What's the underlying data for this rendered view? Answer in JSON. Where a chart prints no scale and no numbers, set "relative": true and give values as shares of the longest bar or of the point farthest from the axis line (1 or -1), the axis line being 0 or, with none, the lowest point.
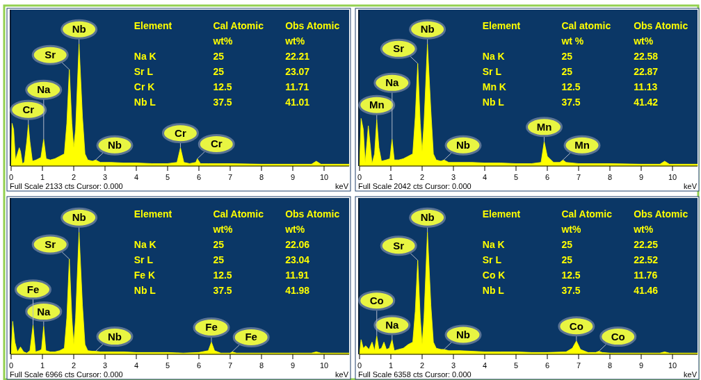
{
  "chart_data": [
    {
      "type": "area",
      "relative": true,
      "xlabel": "keV",
      "xlim": [
        0,
        10.8
      ],
      "xticks": [
        0,
        1,
        2,
        3,
        4,
        5,
        6,
        7,
        8,
        9,
        10
      ],
      "color": "#ffff00",
      "x": [
        0,
        0.03,
        0.08,
        0.14,
        0.2,
        0.26,
        0.3,
        0.36,
        0.42,
        0.5,
        0.55,
        0.6,
        0.68,
        0.8,
        0.95,
        1.04,
        1.12,
        1.25,
        1.4,
        1.55,
        1.7,
        1.78,
        1.86,
        1.94,
        2.0,
        2.06,
        2.17,
        2.28,
        2.36,
        2.45,
        2.6,
        2.7,
        2.85,
        3.2,
        3.6,
        4.0,
        4.5,
        5.0,
        5.3,
        5.41,
        5.52,
        5.7,
        5.9,
        5.95,
        6.05,
        6.3,
        7,
        8,
        9,
        9.6,
        9.75,
        9.9,
        10.4,
        10.8
      ],
      "values": [
        0,
        0.35,
        0.3,
        0.05,
        0.1,
        0.15,
        0.12,
        0.02,
        0.03,
        0.2,
        0.34,
        0.2,
        0.04,
        0.05,
        0.07,
        0.22,
        0.06,
        0.05,
        0.06,
        0.08,
        0.1,
        0.35,
        0.79,
        0.35,
        0.15,
        0.3,
        1.0,
        0.4,
        0.1,
        0.05,
        0.04,
        0.05,
        0.03,
        0.03,
        0.025,
        0.025,
        0.02,
        0.02,
        0.03,
        0.15,
        0.03,
        0.02,
        0.03,
        0.06,
        0.02,
        0.02,
        0.02,
        0.015,
        0.015,
        0.015,
        0.04,
        0.015,
        0.015,
        0.015
      ],
      "annotations": [
        {
          "text": "Nb",
          "x": 2.17,
          "y": 1.0
        },
        {
          "text": "Sr",
          "x": 1.86,
          "y": 0.79
        },
        {
          "text": "Cr",
          "x": 0.55,
          "y": 0.34
        },
        {
          "text": "Na",
          "x": 1.04,
          "y": 0.22
        },
        {
          "text": "Nb",
          "x": 2.7,
          "y": 0.05
        },
        {
          "text": "Cr",
          "x": 5.41,
          "y": 0.15
        },
        {
          "text": "Cr",
          "x": 5.95,
          "y": 0.06
        },
        "Element",
        "Cal Atomic\nwt%",
        "Obs Atomic\nwt%",
        "Na K",
        "25",
        "22.21",
        "Sr L",
        "25",
        "23.07",
        "Cr K",
        "12.5",
        "11.71",
        "Nb L",
        "37.5",
        "41.01",
        "Full Scale 2133 cts Cursor: 0.000"
      ]
    },
    {
      "type": "area",
      "relative": true,
      "xlabel": "keV",
      "xlim": [
        0,
        10.8
      ],
      "xticks": [
        0,
        1,
        2,
        3,
        4,
        5,
        6,
        7,
        8,
        9,
        10
      ],
      "color": "#ffff00",
      "x": [
        0,
        0.05,
        0.12,
        0.18,
        0.24,
        0.28,
        0.33,
        0.4,
        0.48,
        0.55,
        0.62,
        0.7,
        0.85,
        0.97,
        1.04,
        1.11,
        1.25,
        1.4,
        1.55,
        1.7,
        1.78,
        1.86,
        1.94,
        2.0,
        2.06,
        2.17,
        2.28,
        2.36,
        2.45,
        2.6,
        2.7,
        2.85,
        3.2,
        3.6,
        4.0,
        4.5,
        5.0,
        5.5,
        5.8,
        5.9,
        6.0,
        6.2,
        6.4,
        6.5,
        6.6,
        7,
        8,
        9,
        9.6,
        9.75,
        9.9,
        10.4,
        10.8
      ],
      "values": [
        0,
        0.39,
        0.3,
        0.03,
        0.2,
        0.33,
        0.2,
        0.02,
        0.1,
        0.38,
        0.15,
        0.04,
        0.05,
        0.06,
        0.22,
        0.05,
        0.05,
        0.06,
        0.08,
        0.1,
        0.4,
        0.84,
        0.35,
        0.12,
        0.35,
        1.0,
        0.45,
        0.1,
        0.05,
        0.04,
        0.05,
        0.03,
        0.03,
        0.03,
        0.025,
        0.025,
        0.02,
        0.02,
        0.03,
        0.2,
        0.08,
        0.03,
        0.03,
        0.05,
        0.03,
        0.02,
        0.02,
        0.015,
        0.015,
        0.04,
        0.015,
        0.015,
        0.015
      ],
      "annotations": [
        {
          "text": "Nb",
          "x": 2.17,
          "y": 1.0
        },
        {
          "text": "Sr",
          "x": 1.86,
          "y": 0.84
        },
        {
          "text": "Mn",
          "x": 0.55,
          "y": 0.38
        },
        {
          "text": "Na",
          "x": 1.04,
          "y": 0.22
        },
        {
          "text": "Nb",
          "x": 2.7,
          "y": 0.05
        },
        {
          "text": "Mn",
          "x": 5.9,
          "y": 0.2
        },
        {
          "text": "Mn",
          "x": 6.5,
          "y": 0.05
        },
        "Element",
        "Cal atomic\nwt %",
        "Obs Atomic\nwt%",
        "Na K",
        "25",
        "22.58",
        "Sr L",
        "25",
        "22.87",
        "Mn K",
        "12.5",
        "11.13",
        "Nb L",
        "37.5",
        "41.42",
        "Full Scale 2042 cts Cursor: 0.000"
      ]
    },
    {
      "type": "area",
      "relative": true,
      "xlabel": "keV",
      "xlim": [
        0,
        10.8
      ],
      "xticks": [
        0,
        1,
        2,
        3,
        4,
        5,
        6,
        7,
        8,
        9,
        10
      ],
      "color": "#ffff00",
      "x": [
        0,
        0.05,
        0.12,
        0.2,
        0.3,
        0.4,
        0.5,
        0.6,
        0.7,
        0.78,
        0.9,
        0.97,
        1.04,
        1.11,
        1.25,
        1.4,
        1.55,
        1.7,
        1.78,
        1.86,
        1.94,
        2.0,
        2.06,
        2.17,
        2.28,
        2.36,
        2.45,
        2.6,
        2.7,
        2.85,
        3.2,
        3.6,
        4.0,
        4.5,
        5.0,
        5.5,
        6.0,
        6.3,
        6.4,
        6.5,
        6.7,
        7.0,
        7.06,
        7.2,
        8,
        9,
        9.6,
        9.75,
        9.9,
        10.4,
        10.8
      ],
      "values": [
        0,
        0.27,
        0.1,
        0.02,
        0.06,
        0.02,
        0.01,
        0.03,
        0.24,
        0.02,
        0.03,
        0.04,
        0.23,
        0.03,
        0.02,
        0.02,
        0.03,
        0.05,
        0.3,
        0.78,
        0.3,
        0.08,
        0.3,
        1.0,
        0.4,
        0.08,
        0.03,
        0.025,
        0.025,
        0.02,
        0.02,
        0.02,
        0.015,
        0.015,
        0.015,
        0.01,
        0.015,
        0.03,
        0.1,
        0.03,
        0.01,
        0.01,
        0.02,
        0.01,
        0.01,
        0.01,
        0.01,
        0.02,
        0.01,
        0.01,
        0.01
      ],
      "annotations": [
        {
          "text": "Nb",
          "x": 2.17,
          "y": 1.0
        },
        {
          "text": "Sr",
          "x": 1.86,
          "y": 0.78
        },
        {
          "text": "Na",
          "x": 1.04,
          "y": 0.23
        },
        {
          "text": "Fe",
          "x": 0.7,
          "y": 0.24
        },
        {
          "text": "Nb",
          "x": 2.7,
          "y": 0.025
        },
        {
          "text": "Fe",
          "x": 6.4,
          "y": 0.1
        },
        {
          "text": "Fe",
          "x": 7.06,
          "y": 0.02
        },
        "Element",
        "Cal Atomic\nwt%",
        "Obs Atomic\nwt%",
        "Na K",
        "25",
        "22.06",
        "Sr L",
        "25",
        "23.04",
        "Fe K",
        "12.5",
        "11.91",
        "Nb L",
        "37.5",
        "41.98",
        "Full Scale 6966 cts Cursor: 0.000"
      ]
    },
    {
      "type": "area",
      "relative": true,
      "xlabel": "keV",
      "xlim": [
        0,
        10.8
      ],
      "xticks": [
        0,
        1,
        2,
        3,
        4,
        5,
        6,
        7,
        8,
        9,
        10
      ],
      "color": "#ffff00",
      "x": [
        0,
        0.05,
        0.12,
        0.2,
        0.3,
        0.4,
        0.48,
        0.55,
        0.62,
        0.7,
        0.78,
        0.86,
        0.95,
        1.04,
        1.11,
        1.25,
        1.4,
        1.55,
        1.7,
        1.78,
        1.86,
        1.94,
        2.0,
        2.06,
        2.17,
        2.28,
        2.36,
        2.45,
        2.6,
        2.7,
        2.85,
        3.2,
        3.6,
        4.0,
        4.5,
        5.0,
        5.5,
        6.0,
        6.6,
        6.8,
        6.93,
        7.06,
        7.3,
        7.55,
        7.65,
        7.75,
        8,
        9,
        9.6,
        9.75,
        9.9,
        10.4,
        10.8
      ],
      "values": [
        0,
        0.12,
        0.05,
        0.07,
        0.04,
        0.1,
        0.03,
        0.15,
        0.04,
        0.05,
        0.1,
        0.04,
        0.05,
        0.12,
        0.03,
        0.04,
        0.05,
        0.08,
        0.1,
        0.35,
        0.77,
        0.3,
        0.08,
        0.3,
        1.0,
        0.4,
        0.1,
        0.05,
        0.04,
        0.04,
        0.03,
        0.03,
        0.025,
        0.02,
        0.02,
        0.02,
        0.015,
        0.015,
        0.02,
        0.05,
        0.11,
        0.04,
        0.015,
        0.015,
        0.025,
        0.015,
        0.01,
        0.01,
        0.01,
        0.02,
        0.01,
        0.01,
        0.01
      ],
      "annotations": [
        {
          "text": "Nb",
          "x": 2.17,
          "y": 1.0
        },
        {
          "text": "Sr",
          "x": 1.86,
          "y": 0.77
        },
        {
          "text": "Na",
          "x": 1.04,
          "y": 0.12
        },
        {
          "text": "Co",
          "x": 0.55,
          "y": 0.15
        },
        {
          "text": "Nb",
          "x": 2.7,
          "y": 0.04
        },
        {
          "text": "Co",
          "x": 6.93,
          "y": 0.11
        },
        {
          "text": "Co",
          "x": 7.65,
          "y": 0.025
        },
        "Element",
        "Cal Atomic\nwt%",
        "Obs Atomic\nwt%",
        "Na K",
        "25",
        "22.25",
        "Sr L",
        "25",
        "22.52",
        "Co K",
        "12.5",
        "11.76",
        "Nb L",
        "37.5",
        "41.46",
        "Full Scale 6358 cts Cursor: 0.000"
      ]
    }
  ]
}
